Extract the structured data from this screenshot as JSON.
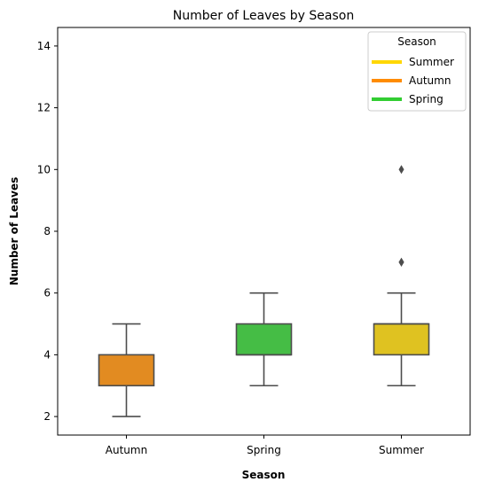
{
  "chart_data": {
    "type": "box",
    "title": "Number of Leaves by Season",
    "xlabel": "Season",
    "ylabel": "Number of Leaves",
    "categories": [
      "Autumn",
      "Spring",
      "Summer"
    ],
    "ylim": [
      1.4,
      14.6
    ],
    "yticks": [
      2,
      4,
      6,
      8,
      10,
      12,
      14
    ],
    "grid": false,
    "boxes": [
      {
        "category": "Autumn",
        "whisker_low": 2,
        "q1": 3,
        "median": 3,
        "q3": 4,
        "whisker_high": 5,
        "outliers": [],
        "color": "#e28b21"
      },
      {
        "category": "Spring",
        "whisker_low": 3,
        "q1": 4,
        "median": 4,
        "q3": 5,
        "whisker_high": 6,
        "outliers": [],
        "color": "#45bd45"
      },
      {
        "category": "Summer",
        "whisker_low": 3,
        "q1": 4,
        "median": 5,
        "q3": 5,
        "whisker_high": 6,
        "outliers": [
          7,
          7,
          10
        ],
        "color": "#dfc221"
      }
    ],
    "legend": {
      "title": "Season",
      "placement": "top-right",
      "entries": [
        {
          "label": "Summer",
          "color": "#ffd700"
        },
        {
          "label": "Autumn",
          "color": "#ff8c00"
        },
        {
          "label": "Spring",
          "color": "#32cd32"
        }
      ]
    },
    "colors": {
      "line": "#4d4d4d"
    }
  }
}
